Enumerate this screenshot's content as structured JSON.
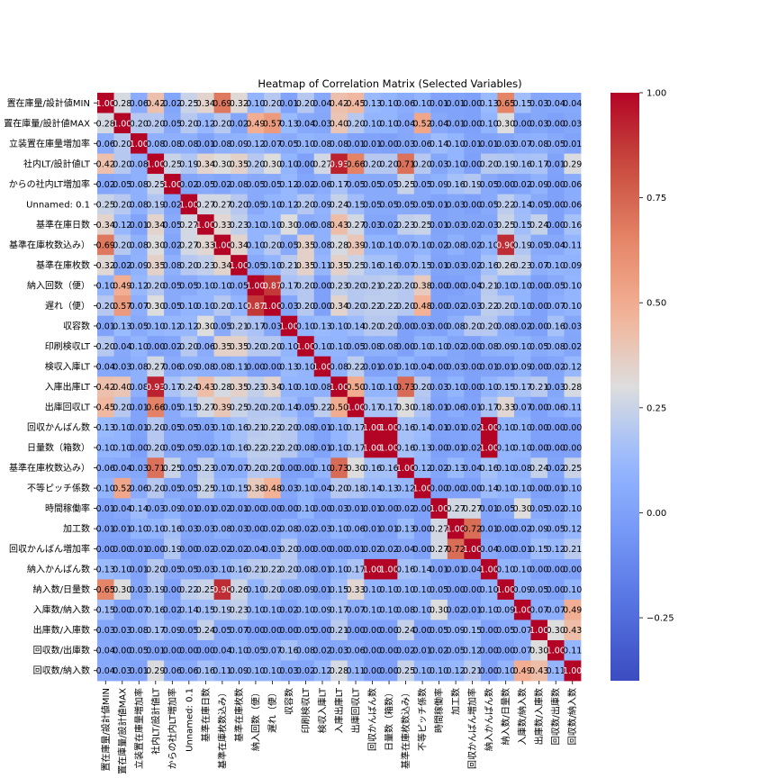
{
  "chart_data": {
    "type": "heatmap",
    "title": "Heatmap of Correlation Matrix (Selected Variables)",
    "variables": [
      "置在庫量/設計値MIN",
      "置在庫量/設計値MAX",
      "立装置在庫量増加率",
      "社内LT/設計値LT",
      "からの社内LT増加率",
      "Unnamed: 0.1",
      "基準在庫日数",
      "基準在庫枚数込み）",
      "基準在庫枚数",
      "納入回数（便）",
      "遅れ（便）",
      "収容数",
      "印刷検収LT",
      "検収入庫LT",
      "入庫出庫LT",
      "出庫回収LT",
      "回収かんばん数",
      "日量数（箱数）",
      "基準在庫枚数込み）",
      "不等ピッチ係数",
      "時間稼働率",
      "加工数",
      "回収かんばん増加率",
      "納入かんばん数",
      "納入数/日量数",
      "入庫数/納入数",
      "出庫数/入庫数",
      "回収数/出庫数",
      "回収数/納入数"
    ],
    "matrix": [
      [
        1.0,
        0.28,
        0.06,
        0.42,
        0.02,
        0.25,
        0.34,
        0.69,
        0.32,
        0.1,
        0.2,
        0.01,
        0.2,
        0.04,
        0.42,
        0.45,
        0.13,
        0.1,
        0.06,
        0.1,
        0.01,
        0.01,
        0.0,
        0.13,
        0.65,
        0.15,
        0.03,
        0.04,
        0.04
      ],
      [
        0.28,
        1.0,
        0.2,
        0.2,
        0.05,
        0.2,
        0.12,
        0.2,
        0.02,
        0.49,
        0.57,
        0.13,
        0.04,
        0.03,
        0.4,
        0.2,
        0.1,
        0.1,
        0.04,
        0.52,
        0.04,
        0.01,
        0.0,
        0.1,
        0.3,
        0.0,
        0.03,
        0.0,
        0.03
      ],
      [
        0.06,
        0.2,
        1.0,
        0.08,
        0.08,
        0.08,
        0.01,
        0.08,
        0.09,
        0.12,
        0.07,
        0.05,
        0.1,
        0.08,
        0.08,
        0.01,
        0.01,
        0.0,
        0.03,
        0.06,
        0.14,
        0.1,
        0.01,
        0.01,
        0.03,
        0.07,
        0.08,
        0.05,
        0.01
      ],
      [
        0.42,
        0.2,
        0.08,
        1.0,
        0.25,
        0.19,
        0.34,
        0.3,
        0.35,
        0.2,
        0.3,
        0.1,
        0.0,
        0.27,
        0.93,
        0.66,
        0.2,
        0.2,
        0.71,
        0.2,
        0.03,
        0.1,
        0.0,
        0.2,
        0.19,
        0.16,
        0.17,
        0.01,
        0.29
      ],
      [
        0.02,
        0.05,
        0.08,
        0.25,
        1.0,
        0.02,
        0.05,
        0.02,
        0.08,
        0.05,
        0.05,
        0.12,
        0.02,
        0.06,
        0.17,
        0.05,
        0.05,
        0.05,
        0.25,
        0.05,
        0.09,
        0.16,
        0.19,
        0.05,
        0.0,
        0.02,
        0.09,
        0.0,
        0.06
      ],
      [
        0.25,
        0.2,
        0.08,
        0.19,
        0.02,
        1.0,
        0.27,
        0.27,
        0.2,
        0.05,
        0.1,
        0.12,
        0.2,
        0.09,
        0.24,
        0.15,
        0.05,
        0.05,
        0.05,
        0.05,
        0.01,
        0.03,
        0.0,
        0.05,
        0.22,
        0.14,
        0.05,
        0.0,
        0.06
      ],
      [
        0.34,
        0.12,
        0.01,
        0.34,
        0.05,
        0.27,
        1.0,
        0.33,
        0.23,
        0.1,
        0.1,
        0.3,
        0.06,
        0.08,
        0.43,
        0.27,
        0.03,
        0.02,
        0.23,
        0.25,
        0.01,
        0.03,
        0.02,
        0.03,
        0.25,
        0.15,
        0.24,
        0.0,
        0.16
      ],
      [
        0.69,
        0.2,
        0.08,
        0.3,
        0.02,
        0.27,
        0.33,
        1.0,
        0.34,
        0.1,
        0.2,
        0.05,
        0.35,
        0.08,
        0.28,
        0.39,
        0.1,
        0.1,
        0.07,
        0.1,
        0.02,
        0.08,
        0.02,
        0.1,
        0.9,
        0.19,
        0.05,
        0.04,
        0.11
      ],
      [
        0.32,
        0.02,
        0.09,
        0.35,
        0.08,
        0.2,
        0.23,
        0.34,
        1.0,
        0.05,
        0.1,
        0.21,
        0.35,
        0.11,
        0.35,
        0.25,
        0.16,
        0.16,
        0.07,
        0.15,
        0.01,
        0.03,
        0.02,
        0.16,
        0.26,
        0.23,
        0.07,
        0.1,
        0.09
      ],
      [
        0.1,
        0.49,
        0.12,
        0.2,
        0.05,
        0.05,
        0.1,
        0.1,
        0.05,
        1.0,
        0.87,
        0.17,
        0.2,
        0.0,
        0.23,
        0.2,
        0.21,
        0.22,
        0.2,
        0.38,
        0.0,
        0.0,
        0.04,
        0.21,
        0.1,
        0.1,
        0.0,
        0.05,
        0.1
      ],
      [
        0.2,
        0.57,
        0.07,
        0.3,
        0.05,
        0.1,
        0.1,
        0.2,
        0.1,
        0.87,
        1.0,
        0.03,
        0.2,
        0.0,
        0.34,
        0.2,
        0.22,
        0.22,
        0.2,
        0.48,
        0.0,
        0.02,
        0.03,
        0.22,
        0.2,
        0.1,
        0.0,
        0.07,
        0.1
      ],
      [
        0.01,
        0.13,
        0.05,
        0.1,
        0.12,
        0.12,
        0.3,
        0.05,
        0.21,
        0.17,
        0.03,
        1.0,
        0.1,
        0.13,
        0.1,
        0.14,
        0.2,
        0.2,
        0.0,
        0.03,
        0.0,
        0.08,
        0.2,
        0.2,
        0.08,
        0.02,
        0.0,
        0.16,
        0.03
      ],
      [
        0.2,
        0.04,
        0.1,
        0.0,
        0.02,
        0.2,
        0.06,
        0.35,
        0.35,
        0.2,
        0.2,
        0.1,
        1.0,
        0.1,
        0.1,
        0.05,
        0.08,
        0.08,
        0.0,
        0.1,
        0.1,
        0.02,
        0.0,
        0.08,
        0.09,
        0.1,
        0.05,
        0.08,
        0.02
      ],
      [
        0.04,
        0.03,
        0.08,
        0.27,
        0.06,
        0.09,
        0.08,
        0.08,
        0.11,
        0.0,
        0.0,
        0.13,
        0.1,
        1.0,
        0.08,
        0.22,
        0.01,
        0.01,
        0.1,
        0.04,
        0.0,
        0.03,
        0.0,
        0.01,
        0.01,
        0.09,
        0.0,
        0.02,
        0.12
      ],
      [
        0.42,
        0.4,
        0.08,
        0.93,
        0.17,
        0.24,
        0.43,
        0.28,
        0.35,
        0.23,
        0.34,
        0.1,
        0.1,
        0.08,
        1.0,
        0.5,
        0.1,
        0.1,
        0.73,
        0.2,
        0.03,
        0.1,
        0.0,
        0.1,
        0.15,
        0.17,
        0.21,
        0.03,
        0.28
      ],
      [
        0.45,
        0.2,
        0.01,
        0.66,
        0.05,
        0.15,
        0.27,
        0.39,
        0.25,
        0.2,
        0.2,
        0.14,
        0.05,
        0.22,
        0.5,
        1.0,
        0.17,
        0.17,
        0.3,
        0.18,
        0.01,
        0.06,
        0.01,
        0.17,
        0.33,
        0.07,
        0.0,
        0.06,
        0.11
      ],
      [
        0.13,
        0.1,
        0.01,
        0.2,
        0.05,
        0.05,
        0.03,
        0.1,
        0.16,
        0.21,
        0.22,
        0.2,
        0.08,
        0.01,
        0.1,
        0.17,
        1.0,
        1.0,
        0.16,
        0.14,
        0.01,
        0.01,
        0.02,
        1.0,
        0.1,
        0.1,
        0.0,
        0.0,
        0.0
      ],
      [
        0.1,
        0.1,
        0.0,
        0.2,
        0.05,
        0.05,
        0.02,
        0.1,
        0.16,
        0.22,
        0.22,
        0.2,
        0.08,
        0.01,
        0.1,
        0.17,
        1.0,
        1.0,
        0.16,
        0.13,
        0.0,
        0.01,
        0.02,
        1.0,
        0.1,
        0.1,
        0.0,
        0.0,
        0.0
      ],
      [
        0.06,
        0.04,
        0.03,
        0.71,
        0.25,
        0.05,
        0.23,
        0.07,
        0.07,
        0.2,
        0.2,
        0.0,
        0.0,
        0.1,
        0.73,
        0.3,
        0.16,
        0.16,
        1.0,
        0.12,
        0.02,
        0.13,
        0.04,
        0.16,
        0.1,
        0.08,
        0.24,
        0.02,
        0.25
      ],
      [
        0.1,
        0.52,
        0.06,
        0.2,
        0.05,
        0.05,
        0.25,
        0.1,
        0.15,
        0.38,
        0.48,
        0.03,
        0.1,
        0.04,
        0.2,
        0.18,
        0.14,
        0.13,
        0.12,
        1.0,
        0.0,
        0.0,
        0.0,
        0.14,
        0.1,
        0.1,
        0.0,
        0.01,
        0.1
      ],
      [
        0.01,
        0.04,
        0.14,
        0.03,
        0.09,
        0.01,
        0.01,
        0.02,
        0.01,
        0.0,
        0.0,
        0.0,
        0.1,
        0.0,
        0.03,
        0.01,
        0.01,
        0.0,
        0.02,
        0.0,
        1.0,
        0.27,
        0.27,
        0.01,
        0.05,
        0.3,
        0.05,
        0.02,
        0.1
      ],
      [
        0.01,
        0.01,
        0.1,
        0.1,
        0.16,
        0.03,
        0.03,
        0.08,
        0.03,
        0.0,
        0.02,
        0.08,
        0.02,
        0.03,
        0.1,
        0.06,
        0.01,
        0.01,
        0.13,
        0.0,
        0.27,
        1.0,
        0.72,
        0.01,
        0.0,
        0.02,
        0.09,
        0.05,
        0.12
      ],
      [
        0.0,
        0.0,
        0.01,
        0.0,
        0.19,
        0.0,
        0.02,
        0.02,
        0.02,
        0.04,
        0.03,
        0.2,
        0.0,
        0.0,
        0.0,
        0.01,
        0.02,
        0.02,
        0.04,
        0.0,
        0.27,
        0.72,
        1.0,
        0.04,
        0.0,
        0.01,
        0.15,
        0.12,
        0.21
      ],
      [
        0.13,
        0.1,
        0.01,
        0.2,
        0.05,
        0.05,
        0.03,
        0.1,
        0.16,
        0.21,
        0.22,
        0.2,
        0.08,
        0.01,
        0.1,
        0.17,
        1.0,
        1.0,
        0.16,
        0.14,
        0.01,
        0.01,
        0.04,
        1.0,
        0.1,
        0.1,
        0.0,
        0.0,
        0.0
      ],
      [
        0.65,
        0.3,
        0.03,
        0.19,
        0.0,
        0.22,
        0.25,
        0.9,
        0.26,
        0.1,
        0.2,
        0.08,
        0.09,
        0.01,
        0.15,
        0.33,
        0.1,
        0.1,
        0.1,
        0.1,
        0.05,
        0.0,
        0.0,
        0.1,
        1.0,
        0.09,
        0.05,
        0.0,
        0.1
      ],
      [
        0.15,
        0.0,
        0.07,
        0.16,
        0.02,
        0.14,
        0.15,
        0.19,
        0.23,
        0.1,
        0.1,
        0.02,
        0.1,
        0.09,
        0.17,
        0.07,
        0.1,
        0.1,
        0.08,
        0.1,
        0.3,
        0.02,
        0.01,
        0.1,
        0.09,
        1.0,
        0.07,
        0.07,
        0.49
      ],
      [
        0.03,
        0.03,
        0.08,
        0.17,
        0.09,
        0.05,
        0.24,
        0.05,
        0.07,
        0.0,
        0.0,
        0.0,
        0.05,
        0.0,
        0.21,
        0.0,
        0.0,
        0.0,
        0.24,
        0.0,
        0.05,
        0.09,
        0.15,
        0.0,
        0.05,
        0.07,
        1.0,
        0.3,
        0.43
      ],
      [
        0.04,
        0.0,
        0.05,
        0.01,
        0.0,
        0.0,
        0.0,
        0.04,
        0.1,
        0.05,
        0.07,
        0.16,
        0.08,
        0.02,
        0.03,
        0.06,
        0.0,
        0.0,
        0.02,
        0.01,
        0.02,
        0.05,
        0.12,
        0.0,
        0.0,
        0.07,
        0.3,
        1.0,
        0.11
      ],
      [
        0.04,
        0.03,
        0.01,
        0.29,
        0.06,
        0.06,
        0.16,
        0.11,
        0.09,
        0.1,
        0.1,
        0.03,
        0.02,
        0.12,
        0.28,
        0.11,
        0.0,
        0.0,
        0.25,
        0.1,
        0.1,
        0.12,
        0.21,
        0.0,
        0.1,
        0.49,
        0.43,
        0.11,
        1.0
      ]
    ],
    "value_range": [
      -0.4,
      1.0
    ],
    "colormap": "coolwarm",
    "annotation_format": "0.00 (leading zero dropped when cells crowd)",
    "colorbar": {
      "ticks": [
        1.0,
        0.75,
        0.5,
        0.25,
        0.0,
        -0.25
      ],
      "placement": "right"
    },
    "colors": {
      "low": "#3b4cc0",
      "mid": "#dddddd",
      "high": "#b40426"
    }
  }
}
